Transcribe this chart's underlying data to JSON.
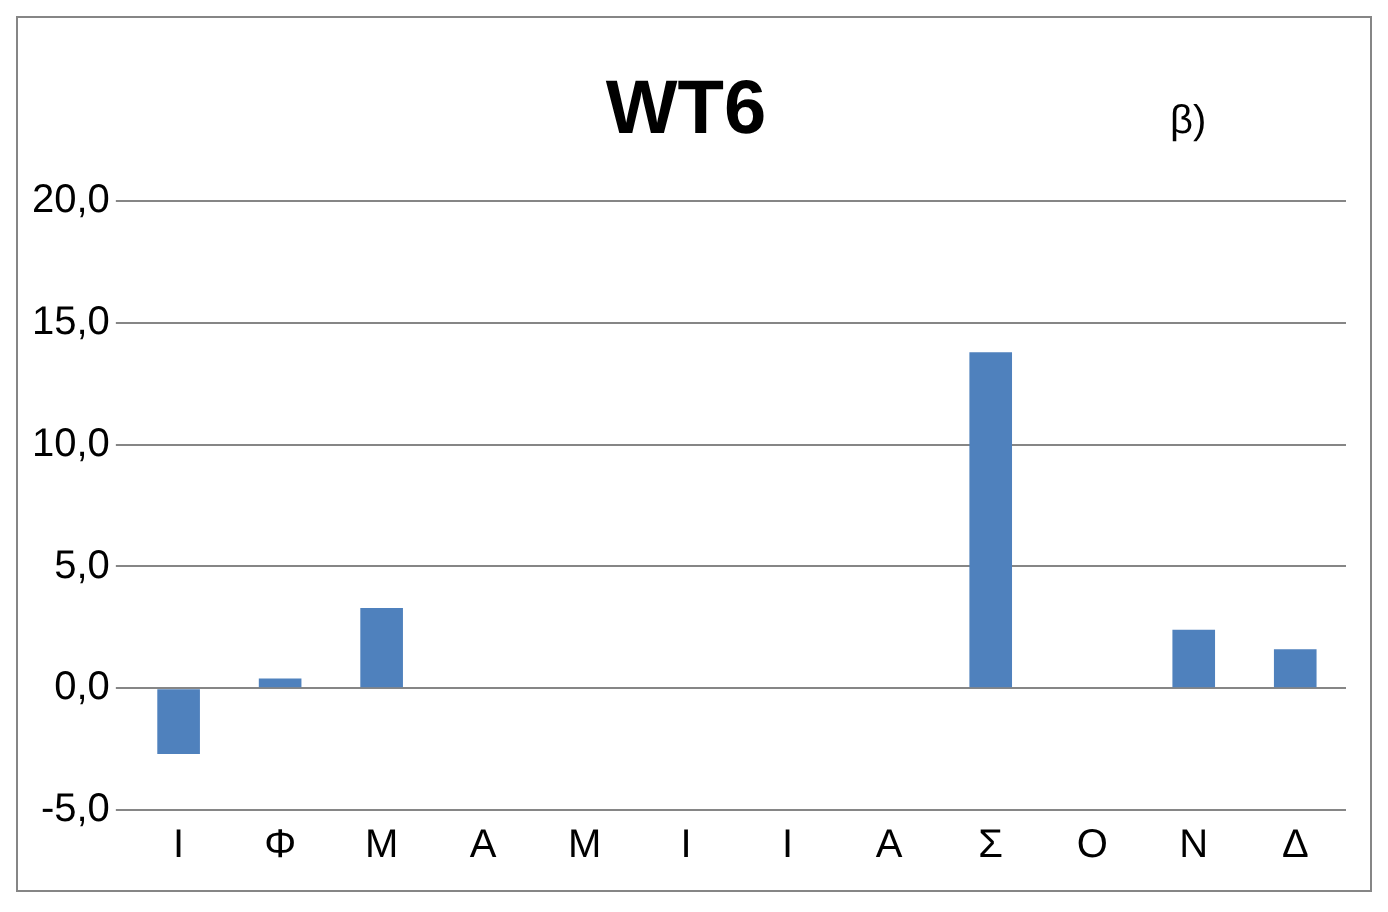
{
  "chart_data": {
    "type": "bar",
    "title": "WT6",
    "annotations": [
      "β)"
    ],
    "categories": [
      "Ι",
      "Φ",
      "Μ",
      "Α",
      "Μ",
      "Ι",
      "Ι",
      "Α",
      "Σ",
      "Ο",
      "Ν",
      "Δ"
    ],
    "values": [
      -2.7,
      0.4,
      3.3,
      0,
      0,
      0,
      0,
      0,
      13.8,
      0,
      2.4,
      1.6
    ],
    "color": "#4f81bd",
    "ylim": [
      -5,
      20
    ],
    "yticks": [
      {
        "value": -5,
        "label": "-5,0"
      },
      {
        "value": 0,
        "label": "0,0"
      },
      {
        "value": 5,
        "label": "5,0"
      },
      {
        "value": 10,
        "label": "10,0"
      },
      {
        "value": 15,
        "label": "15,0"
      },
      {
        "value": 20,
        "label": "20,0"
      }
    ],
    "grid": "y",
    "legend": false
  }
}
